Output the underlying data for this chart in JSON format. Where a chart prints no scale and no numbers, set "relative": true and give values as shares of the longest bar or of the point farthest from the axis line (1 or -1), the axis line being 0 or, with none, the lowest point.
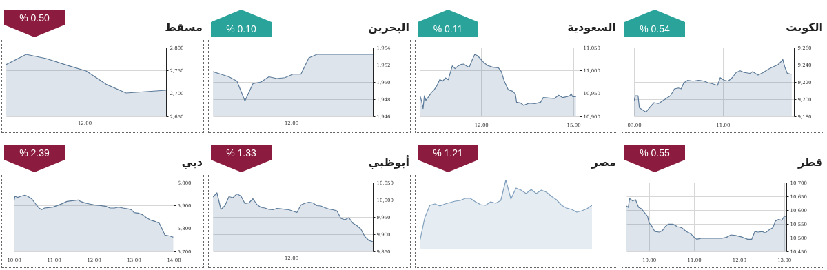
{
  "chart_data": [
    {
      "type": "area",
      "title": "الكويت",
      "annotations": [
        "% 0.54"
      ],
      "grid": true,
      "xlim": [
        9,
        12.6
      ],
      "xticks": [
        {
          "value": 9,
          "label": "09:00"
        },
        {
          "value": 11,
          "label": "11:00"
        }
      ],
      "ylim": [
        9180,
        9260
      ],
      "yticks": [
        {
          "value": 9180,
          "label": "9,180"
        },
        {
          "value": 9200,
          "label": "9,200"
        },
        {
          "value": 9220,
          "label": "9,220"
        },
        {
          "value": 9240,
          "label": "9,240"
        },
        {
          "value": 9260,
          "label": "9,260"
        }
      ],
      "x": [
        9.0,
        9.03,
        9.09,
        9.12,
        9.21,
        9.27,
        9.33,
        9.45,
        9.55,
        9.64,
        9.73,
        9.82,
        9.91,
        10.0,
        10.06,
        10.12,
        10.21,
        10.33,
        10.45,
        10.58,
        10.67,
        10.76,
        10.88,
        10.94,
        11.03,
        11.12,
        11.21,
        11.3,
        11.39,
        11.48,
        11.61,
        11.67,
        11.79,
        11.91,
        12.03,
        12.15,
        12.24,
        12.3,
        12.35,
        12.39,
        12.45,
        12.55
      ],
      "series": [
        {
          "color": "#5b7a99",
          "values": [
            9198,
            9204,
            9204,
            9190,
            9187,
            9185,
            9189,
            9196,
            9195,
            9198,
            9201,
            9204,
            9212,
            9213,
            9212,
            9219,
            9222,
            9221,
            9222,
            9221,
            9219,
            9218,
            9216,
            9225,
            9222,
            9221,
            9225,
            9231,
            9233,
            9231,
            9230,
            9232,
            9228,
            9231,
            9235,
            9238,
            9240,
            9243,
            9246,
            9238,
            9230,
            9229
          ]
        }
      ]
    },
    {
      "type": "area",
      "title": "السعودية",
      "annotations": [
        "% 0.11"
      ],
      "grid": true,
      "xlim": [
        10,
        15.2
      ],
      "xticks": [
        {
          "value": 12,
          "label": "12:00"
        },
        {
          "value": 15,
          "label": "15:00"
        }
      ],
      "ylim": [
        10900,
        11050
      ],
      "yticks": [
        {
          "value": 10900,
          "label": "10,900"
        },
        {
          "value": 10950,
          "label": "10,950"
        },
        {
          "value": 11000,
          "label": "11,000"
        },
        {
          "value": 11050,
          "label": "11,050"
        }
      ],
      "x": [
        10.0,
        10.06,
        10.11,
        10.15,
        10.2,
        10.29,
        10.38,
        10.47,
        10.56,
        10.65,
        10.75,
        10.84,
        10.93,
        11.02,
        11.06,
        11.15,
        11.25,
        11.34,
        11.43,
        11.52,
        11.61,
        11.7,
        11.79,
        11.88,
        11.97,
        12.06,
        12.2,
        12.38,
        12.56,
        12.65,
        12.75,
        12.88,
        13.02,
        13.11,
        13.15,
        13.29,
        13.38,
        13.56,
        13.75,
        13.93,
        14.02,
        14.2,
        14.38,
        14.52,
        14.65,
        14.79,
        14.88,
        14.93,
        14.97,
        15.08
      ],
      "series": [
        {
          "color": "#5b7a99",
          "values": [
            10947,
            10934,
            10917,
            10945,
            10935,
            10943,
            10952,
            10958,
            10967,
            10980,
            10977,
            10984,
            10980,
            11001,
            11010,
            11004,
            11010,
            11013,
            11014,
            11010,
            11007,
            11022,
            11035,
            11032,
            11026,
            11019,
            11011,
            11007,
            11006,
            10998,
            10977,
            10958,
            10955,
            10949,
            10931,
            10929,
            10924,
            10929,
            10928,
            10931,
            10941,
            10940,
            10939,
            10946,
            10941,
            10943,
            10945,
            10949,
            10943,
            10943
          ]
        }
      ]
    },
    {
      "type": "area",
      "title": "البحرين",
      "annotations": [
        "% 0.10",
        "12:00"
      ],
      "grid": "y",
      "ylim": [
        1946,
        1954
      ],
      "yticks": [
        {
          "value": 1946,
          "label": "1,946"
        },
        {
          "value": 1948,
          "label": "1,948"
        },
        {
          "value": 1950,
          "label": "1,950"
        },
        {
          "value": 1952,
          "label": "1,952"
        },
        {
          "value": 1954,
          "label": "1,954"
        }
      ],
      "categories": [
        null,
        null,
        null,
        null,
        null,
        null,
        null,
        null,
        null,
        null,
        null,
        null,
        null,
        null,
        null,
        null,
        null,
        null,
        null,
        null,
        null
      ],
      "series": [
        {
          "color": "#5b7a99",
          "values": [
            1951.2,
            1950.9,
            1950.6,
            1950.1,
            1947.8,
            1949.8,
            1950.0,
            1950.6,
            1950.4,
            1950.5,
            1950.9,
            1950.9,
            1952.8,
            1953.2,
            1953.2,
            1953.2,
            1953.2,
            1953.2,
            1953.2,
            1953.2,
            1953.2
          ]
        }
      ]
    },
    {
      "type": "area",
      "title": "مسقط",
      "annotations": [
        "% 0.50",
        "12:00"
      ],
      "grid": "y",
      "ylim": [
        2650,
        2800
      ],
      "yticks": [
        {
          "value": 2650,
          "label": "2,650"
        },
        {
          "value": 2700,
          "label": "2,700"
        },
        {
          "value": 2750,
          "label": "2,750"
        },
        {
          "value": 2800,
          "label": "2,800"
        }
      ],
      "categories": [
        null,
        null,
        null,
        null,
        null,
        null,
        null,
        null,
        null
      ],
      "series": [
        {
          "color": "#5b7a99",
          "values": [
            2763,
            2785,
            2776,
            2762,
            2749,
            2720,
            2701,
            2704,
            2707
          ]
        }
      ]
    },
    {
      "type": "area",
      "title": "قطر",
      "annotations": [
        "% 0.55"
      ],
      "grid": true,
      "xlim": [
        9.5,
        13.05
      ],
      "xticks": [
        {
          "value": 10,
          "label": "10:00"
        },
        {
          "value": 11,
          "label": "11:00"
        },
        {
          "value": 12,
          "label": "12:00"
        },
        {
          "value": 13,
          "label": "13:00"
        }
      ],
      "ylim": [
        10450,
        10700
      ],
      "yticks": [
        {
          "value": 10450,
          "label": "10,450"
        },
        {
          "value": 10500,
          "label": "10,500"
        },
        {
          "value": 10550,
          "label": "10,550"
        },
        {
          "value": 10600,
          "label": "10,600"
        },
        {
          "value": 10650,
          "label": "10,650"
        },
        {
          "value": 10700,
          "label": "10,700"
        }
      ],
      "x": [
        9.5,
        9.54,
        9.57,
        9.64,
        9.7,
        9.77,
        9.83,
        9.9,
        9.97,
        10.0,
        10.07,
        10.13,
        10.23,
        10.3,
        10.36,
        10.43,
        10.53,
        10.63,
        10.73,
        10.83,
        10.93,
        10.99,
        11.06,
        11.16,
        11.32,
        11.49,
        11.62,
        11.72,
        11.82,
        11.92,
        12.05,
        12.19,
        12.28,
        12.35,
        12.42,
        12.52,
        12.58,
        12.65,
        12.75,
        12.81,
        12.88,
        12.95,
        13.0,
        13.05
      ],
      "series": [
        {
          "color": "#5b7a99",
          "values": [
            10615,
            10610,
            10642,
            10633,
            10638,
            10610,
            10605,
            10591,
            10577,
            10554,
            10540,
            10522,
            10520,
            10526,
            10540,
            10549,
            10549,
            10540,
            10536,
            10522,
            10514,
            10503,
            10494,
            10498,
            10498,
            10498,
            10498,
            10501,
            10510,
            10508,
            10503,
            10494,
            10494,
            10522,
            10520,
            10522,
            10517,
            10526,
            10536,
            10561,
            10566,
            10563,
            10577,
            10577
          ]
        }
      ]
    },
    {
      "type": "area",
      "title": "مصر",
      "annotations": [
        "% 1.21"
      ],
      "relative": true,
      "categories": [
        null,
        null,
        null,
        null,
        null,
        null,
        null,
        null,
        null,
        null,
        null,
        null,
        null,
        null,
        null,
        null,
        null,
        null,
        null,
        null,
        null,
        null,
        null,
        null,
        null,
        null,
        null,
        null,
        null,
        null,
        null,
        null,
        null,
        null,
        null
      ],
      "series": [
        {
          "color": "#7f9fbd",
          "values": [
            0.1,
            0.45,
            0.63,
            0.65,
            0.62,
            0.65,
            0.67,
            0.69,
            0.7,
            0.73,
            0.73,
            0.68,
            0.64,
            0.63,
            0.68,
            0.66,
            0.7,
            1.0,
            0.72,
            0.88,
            0.85,
            0.8,
            0.86,
            0.8,
            0.85,
            0.82,
            0.76,
            0.71,
            0.63,
            0.59,
            0.57,
            0.53,
            0.55,
            0.58,
            0.63
          ]
        }
      ]
    },
    {
      "type": "area",
      "title": "أبوظبي",
      "annotations": [
        "% 1.33",
        "12:00"
      ],
      "grid": "y",
      "ylim": [
        9850,
        10050
      ],
      "yticks": [
        {
          "value": 9850,
          "label": "9,850"
        },
        {
          "value": 9900,
          "label": "9,900"
        },
        {
          "value": 9950,
          "label": "9,950"
        },
        {
          "value": 10000,
          "label": "10,000"
        },
        {
          "value": 10050,
          "label": "10,050"
        }
      ],
      "categories": [
        null,
        null,
        null,
        null,
        null,
        null,
        null,
        null,
        null,
        null,
        null,
        null,
        null,
        null,
        null,
        null,
        null,
        null,
        null,
        null,
        null,
        null,
        null,
        null,
        null,
        null,
        null,
        null,
        null,
        null,
        null,
        null,
        null,
        null,
        null,
        null,
        null,
        null,
        null,
        null,
        null
      ],
      "series": [
        {
          "color": "#5b7a99",
          "values": [
            10008,
            10020,
            9972,
            9983,
            10009,
            10006,
            10017,
            10011,
            9989,
            9991,
            10003,
            9986,
            9978,
            9976,
            9972,
            9971,
            9975,
            9974,
            9972,
            9971,
            9967,
            9963,
            9985,
            9990,
            9993,
            9991,
            9983,
            9982,
            9977,
            9973,
            9971,
            9968,
            9946,
            9942,
            9948,
            9932,
            9925,
            9915,
            9893,
            9882,
            9878
          ]
        }
      ]
    },
    {
      "type": "area",
      "title": "دبي",
      "annotations": [
        "% 2.39"
      ],
      "grid": true,
      "xlim": [
        10,
        14
      ],
      "xticks": [
        {
          "value": 10,
          "label": "10:00"
        },
        {
          "value": 11,
          "label": "11:00"
        },
        {
          "value": 12,
          "label": "12:00"
        },
        {
          "value": 13,
          "label": "13:00"
        },
        {
          "value": 14,
          "label": "14:00"
        }
      ],
      "ylim": [
        5700,
        6000
      ],
      "yticks": [
        {
          "value": 5700,
          "label": "5,700"
        },
        {
          "value": 5800,
          "label": "5,800"
        },
        {
          "value": 5900,
          "label": "5,900"
        },
        {
          "value": 6000,
          "label": "6,000"
        }
      ],
      "x": [
        10.0,
        10.03,
        10.1,
        10.17,
        10.28,
        10.35,
        10.45,
        10.52,
        10.63,
        10.7,
        10.77,
        10.87,
        10.98,
        11.12,
        11.22,
        11.33,
        11.47,
        11.61,
        11.68,
        11.78,
        11.89,
        12.03,
        12.17,
        12.31,
        12.41,
        12.52,
        12.62,
        12.73,
        12.87,
        12.94,
        13.01,
        13.11,
        13.22,
        13.32,
        13.43,
        13.53,
        13.64,
        13.71,
        13.78,
        13.85,
        13.92,
        13.99
      ],
      "series": [
        {
          "color": "#5b7a99",
          "values": [
            5913,
            5940,
            5935,
            5940,
            5945,
            5940,
            5929,
            5913,
            5889,
            5882,
            5889,
            5891,
            5893,
            5902,
            5909,
            5918,
            5921,
            5924,
            5917,
            5911,
            5907,
            5902,
            5900,
            5896,
            5889,
            5889,
            5893,
            5889,
            5885,
            5882,
            5869,
            5867,
            5860,
            5847,
            5836,
            5831,
            5823,
            5798,
            5771,
            5769,
            5766,
            5762
          ]
        }
      ]
    }
  ]
}
